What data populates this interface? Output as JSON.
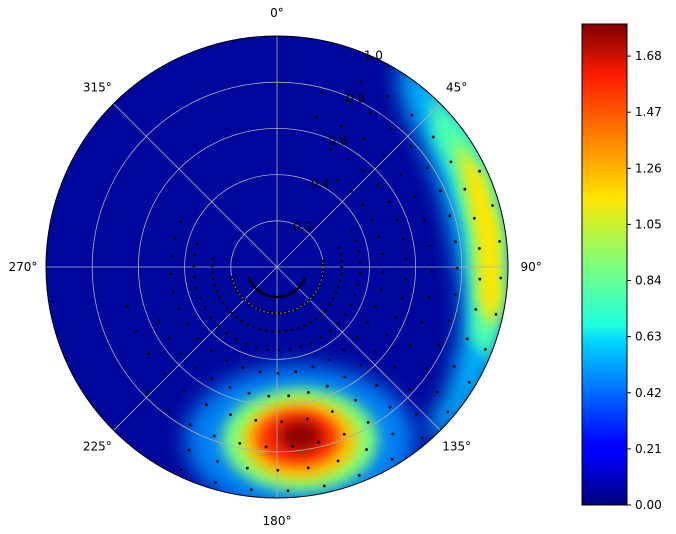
{
  "chart_data": {
    "type": "heatmap",
    "projection": "polar",
    "theta_zero_location": "N",
    "theta_direction": "clockwise",
    "angular_ticks": [
      "0°",
      "45°",
      "90°",
      "135°",
      "180°",
      "225°",
      "270°",
      "315°"
    ],
    "radial_ticks": [
      "0.2",
      "0.4",
      "0.6",
      "0.8",
      "1.0"
    ],
    "radial_values": [
      0.2,
      0.4,
      0.6,
      0.8,
      1.0
    ],
    "rlim": [
      0,
      1.0
    ],
    "grid": true,
    "colormap": "jet",
    "colorbar": {
      "range": [
        0,
        1.8
      ],
      "ticks": [
        "0.00",
        "0.21",
        "0.42",
        "0.63",
        "0.84",
        "1.05",
        "1.26",
        "1.47",
        "1.68"
      ],
      "tick_values": [
        0.0,
        0.21,
        0.42,
        0.63,
        0.84,
        1.05,
        1.26,
        1.47,
        1.68
      ],
      "placement": "right"
    },
    "hotspots": [
      {
        "theta_deg": 95,
        "r": 0.92,
        "value": 1.2
      },
      {
        "theta_deg": 168,
        "r": 0.78,
        "value": 1.8
      }
    ],
    "samples": [
      {
        "r": 0.13,
        "theta_from": 110,
        "theta_to": 250,
        "count": 28
      },
      {
        "r": 0.2,
        "theta_from": 80,
        "theta_to": 260,
        "count": 34
      },
      {
        "r": 0.28,
        "theta_from": 70,
        "theta_to": 280,
        "count": 36
      },
      {
        "r": 0.36,
        "theta_from": 60,
        "theta_to": 290,
        "count": 30
      },
      {
        "r": 0.46,
        "theta_from": 30,
        "theta_to": 300,
        "count": 28
      },
      {
        "r": 0.56,
        "theta_from": 20,
        "theta_to": 250,
        "count": 26
      },
      {
        "r": 0.67,
        "theta_from": 10,
        "theta_to": 260,
        "count": 26
      },
      {
        "r": 0.78,
        "theta_from": 10,
        "theta_to": 230,
        "count": 26
      },
      {
        "r": 0.88,
        "theta_from": 20,
        "theta_to": 210,
        "count": 22
      },
      {
        "r": 0.97,
        "theta_from": 60,
        "theta_to": 210,
        "count": 16
      }
    ]
  }
}
